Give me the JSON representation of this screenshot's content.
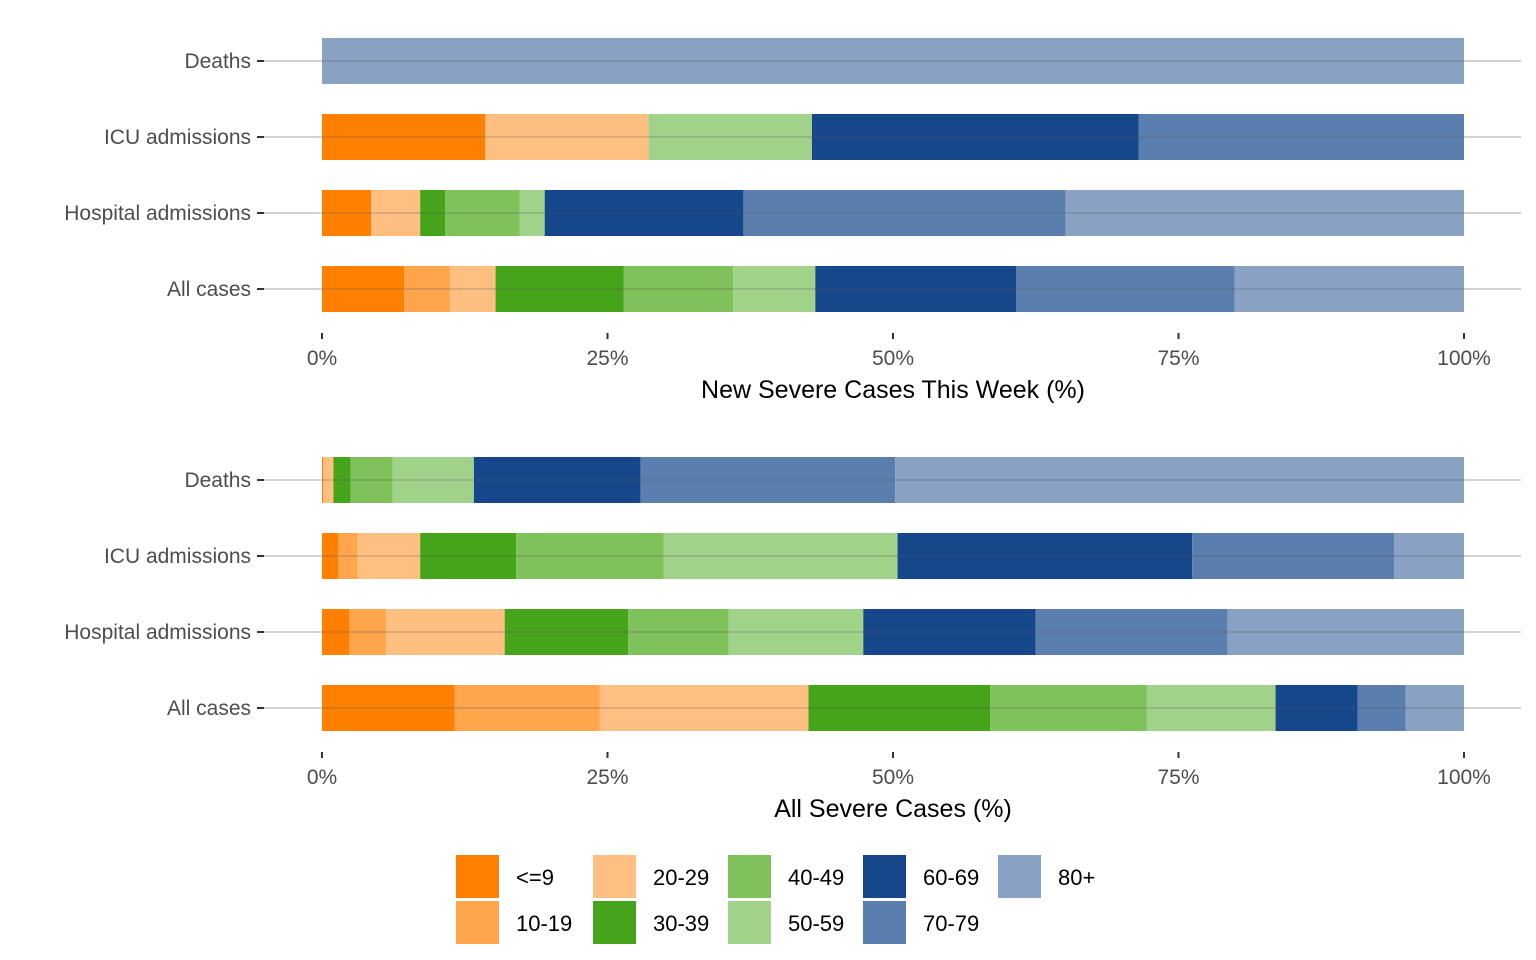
{
  "chart_data": [
    {
      "type": "bar",
      "orientation": "horizontal",
      "stacked": "percent",
      "xlabel": "New Severe Cases This Week (%)",
      "ylabel": "",
      "xlim": [
        0,
        100
      ],
      "x_ticks": [
        "0%",
        "25%",
        "50%",
        "75%",
        "100%"
      ],
      "categories": [
        "Deaths",
        "ICU admissions",
        "Hospital admissions",
        "All cases"
      ],
      "series": [
        {
          "name": "<=9",
          "values": [
            0,
            14.3,
            4.3,
            7.2
          ]
        },
        {
          "name": "10-19",
          "values": [
            0,
            0,
            0,
            4.0
          ]
        },
        {
          "name": "20-29",
          "values": [
            0,
            14.3,
            4.3,
            4.0
          ]
        },
        {
          "name": "30-39",
          "values": [
            0,
            0,
            2.2,
            11.2
          ]
        },
        {
          "name": "40-49",
          "values": [
            0,
            0,
            6.5,
            9.6
          ]
        },
        {
          "name": "50-59",
          "values": [
            0,
            14.3,
            2.2,
            7.2
          ]
        },
        {
          "name": "60-69",
          "values": [
            0,
            28.6,
            17.4,
            17.6
          ]
        },
        {
          "name": "70-79",
          "values": [
            0,
            28.5,
            28.2,
            19.1
          ]
        },
        {
          "name": "80+",
          "values": [
            100,
            0,
            34.9,
            20.1
          ]
        }
      ],
      "grid": "horizontal"
    },
    {
      "type": "bar",
      "orientation": "horizontal",
      "stacked": "percent",
      "xlabel": "All Severe Cases (%)",
      "ylabel": "",
      "xlim": [
        0,
        100
      ],
      "x_ticks": [
        "0%",
        "25%",
        "50%",
        "75%",
        "100%"
      ],
      "categories": [
        "Deaths",
        "ICU admissions",
        "Hospital admissions",
        "All cases"
      ],
      "series": [
        {
          "name": "<=9",
          "values": [
            0.1,
            1.4,
            2.4,
            11.6
          ]
        },
        {
          "name": "10-19",
          "values": [
            0,
            1.7,
            3.2,
            12.7
          ]
        },
        {
          "name": "20-29",
          "values": [
            0.9,
            5.5,
            10.4,
            18.3
          ]
        },
        {
          "name": "30-39",
          "values": [
            1.5,
            8.4,
            10.8,
            15.9
          ]
        },
        {
          "name": "40-49",
          "values": [
            3.7,
            12.9,
            8.8,
            13.7
          ]
        },
        {
          "name": "50-59",
          "values": [
            7.1,
            20.5,
            11.8,
            11.3
          ]
        },
        {
          "name": "60-69",
          "values": [
            14.6,
            25.8,
            15.1,
            7.2
          ]
        },
        {
          "name": "70-79",
          "values": [
            22.3,
            17.7,
            16.8,
            4.2
          ]
        },
        {
          "name": "80+",
          "values": [
            49.8,
            6.1,
            20.7,
            5.1
          ]
        }
      ],
      "grid": "horizontal"
    }
  ],
  "legend": {
    "position": "bottom",
    "items": [
      {
        "label": "<=9",
        "color": "#FF7F00"
      },
      {
        "label": "10-19",
        "color": "#FFA54C"
      },
      {
        "label": "20-29",
        "color": "#FFBF80"
      },
      {
        "label": "30-39",
        "color": "#45A419"
      },
      {
        "label": "40-49",
        "color": "#7FC25C"
      },
      {
        "label": "50-59",
        "color": "#A0D28A"
      },
      {
        "label": "60-69",
        "color": "#15478A"
      },
      {
        "label": "70-79",
        "color": "#5A7EAD"
      },
      {
        "label": "80+",
        "color": "#89A2C4"
      }
    ]
  }
}
